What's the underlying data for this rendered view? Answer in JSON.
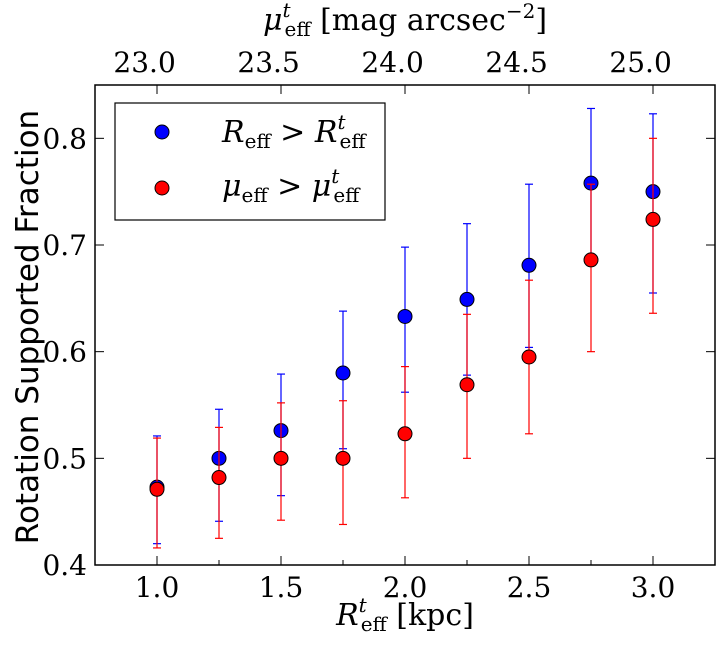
{
  "chart_data": {
    "type": "scatter",
    "ylabel": "Rotation Supported Fraction",
    "xlabel": {
      "main": "R",
      "sup": "t",
      "sub": "eff",
      "unit": " [kpc]"
    },
    "top_xlabel": {
      "main": "μ",
      "sup": "t",
      "sub": "eff",
      "unit": " [mag arcsec",
      "unit_sup": "−2",
      "unit_end": "]"
    },
    "xlim": [
      0.75,
      3.25
    ],
    "ylim": [
      0.4,
      0.85
    ],
    "x_ticks": [
      "1.0",
      "1.5",
      "2.0",
      "2.5",
      "3.0"
    ],
    "x_tick_values": [
      1.0,
      1.5,
      2.0,
      2.5,
      3.0
    ],
    "y_ticks": [
      "0.4",
      "0.5",
      "0.6",
      "0.7",
      "0.8"
    ],
    "y_tick_values": [
      0.4,
      0.5,
      0.6,
      0.7,
      0.8
    ],
    "top_ticks": [
      "23.0",
      "23.5",
      "24.0",
      "24.5",
      "25.0"
    ],
    "top_tick_positions": [
      0.95,
      1.45,
      1.95,
      2.45,
      2.95
    ],
    "legend_position": "top-left",
    "series": [
      {
        "name": "R_eff > R^t_eff",
        "legend": {
          "main": "R",
          "sub": "eff",
          "op": " > ",
          "main2": "R",
          "sup2": "t",
          "sub2": "eff"
        },
        "color": "#0000ff",
        "x": [
          1.0,
          1.25,
          1.5,
          1.75,
          2.0,
          2.25,
          2.5,
          2.75,
          3.0
        ],
        "y": [
          0.473,
          0.5,
          0.526,
          0.58,
          0.633,
          0.649,
          0.681,
          0.758,
          0.75
        ],
        "err_low": [
          0.42,
          0.441,
          0.465,
          0.509,
          0.562,
          0.578,
          0.604,
          0.686,
          0.655
        ],
        "err_high": [
          0.521,
          0.546,
          0.579,
          0.638,
          0.698,
          0.72,
          0.757,
          0.828,
          0.823
        ]
      },
      {
        "name": "μ_eff > μ^t_eff",
        "legend": {
          "main": "μ",
          "sub": "eff",
          "op": " > ",
          "main2": "μ",
          "sup2": "t",
          "sub2": "eff"
        },
        "color": "#ff0000",
        "x": [
          1.0,
          1.25,
          1.5,
          1.75,
          2.0,
          2.25,
          2.5,
          2.75,
          3.0
        ],
        "y": [
          0.471,
          0.482,
          0.5,
          0.5,
          0.523,
          0.569,
          0.595,
          0.686,
          0.724
        ],
        "err_low": [
          0.416,
          0.425,
          0.442,
          0.438,
          0.463,
          0.5,
          0.523,
          0.6,
          0.636
        ],
        "err_high": [
          0.519,
          0.529,
          0.552,
          0.554,
          0.586,
          0.635,
          0.667,
          0.757,
          0.8
        ]
      }
    ]
  }
}
